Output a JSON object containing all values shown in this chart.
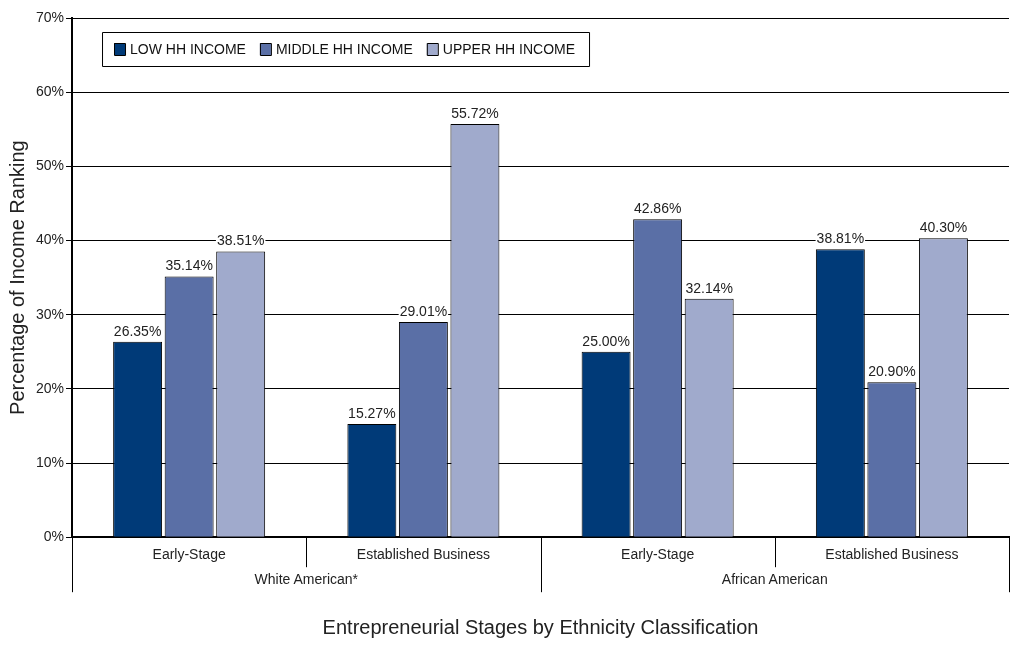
{
  "chart_data": {
    "type": "bar",
    "xlabel": "Entrepreneurial Stages by Ethnicity Classification",
    "ylabel": "Percentage of Income Ranking",
    "categories": [
      "Early-Stage",
      "Established Business",
      "Early-Stage",
      "Established Business"
    ],
    "annotations": [
      "White American*",
      "African American"
    ],
    "series": [
      {
        "name": "LOW HH INCOME",
        "color": "#003a78",
        "values": [
          26.35,
          15.27,
          25.0,
          38.81
        ],
        "value_labels": [
          "26.35%",
          "15.27%",
          "25.00%",
          "38.81%"
        ]
      },
      {
        "name": "MIDDLE HH INCOME",
        "color": "#5a6fa6",
        "values": [
          35.14,
          29.01,
          42.86,
          20.9
        ],
        "value_labels": [
          "35.14%",
          "29.01%",
          "42.86%",
          "20.90%"
        ]
      },
      {
        "name": "UPPER HH INCOME",
        "color": "#a0aacc",
        "values": [
          38.51,
          55.72,
          32.14,
          40.3
        ],
        "value_labels": [
          "38.51%",
          "55.72%",
          "32.14%",
          "40.30%"
        ]
      }
    ],
    "ylim": [
      0,
      70
    ],
    "yticks": [
      {
        "value": 0,
        "label": "0%"
      },
      {
        "value": 10,
        "label": "10%"
      },
      {
        "value": 20,
        "label": "20%"
      },
      {
        "value": 30,
        "label": "30%"
      },
      {
        "value": 40,
        "label": "40%"
      },
      {
        "value": 50,
        "label": "50%"
      },
      {
        "value": 60,
        "label": "60%"
      },
      {
        "value": 70,
        "label": "70%"
      }
    ],
    "grid": "y",
    "legend": "top left"
  }
}
